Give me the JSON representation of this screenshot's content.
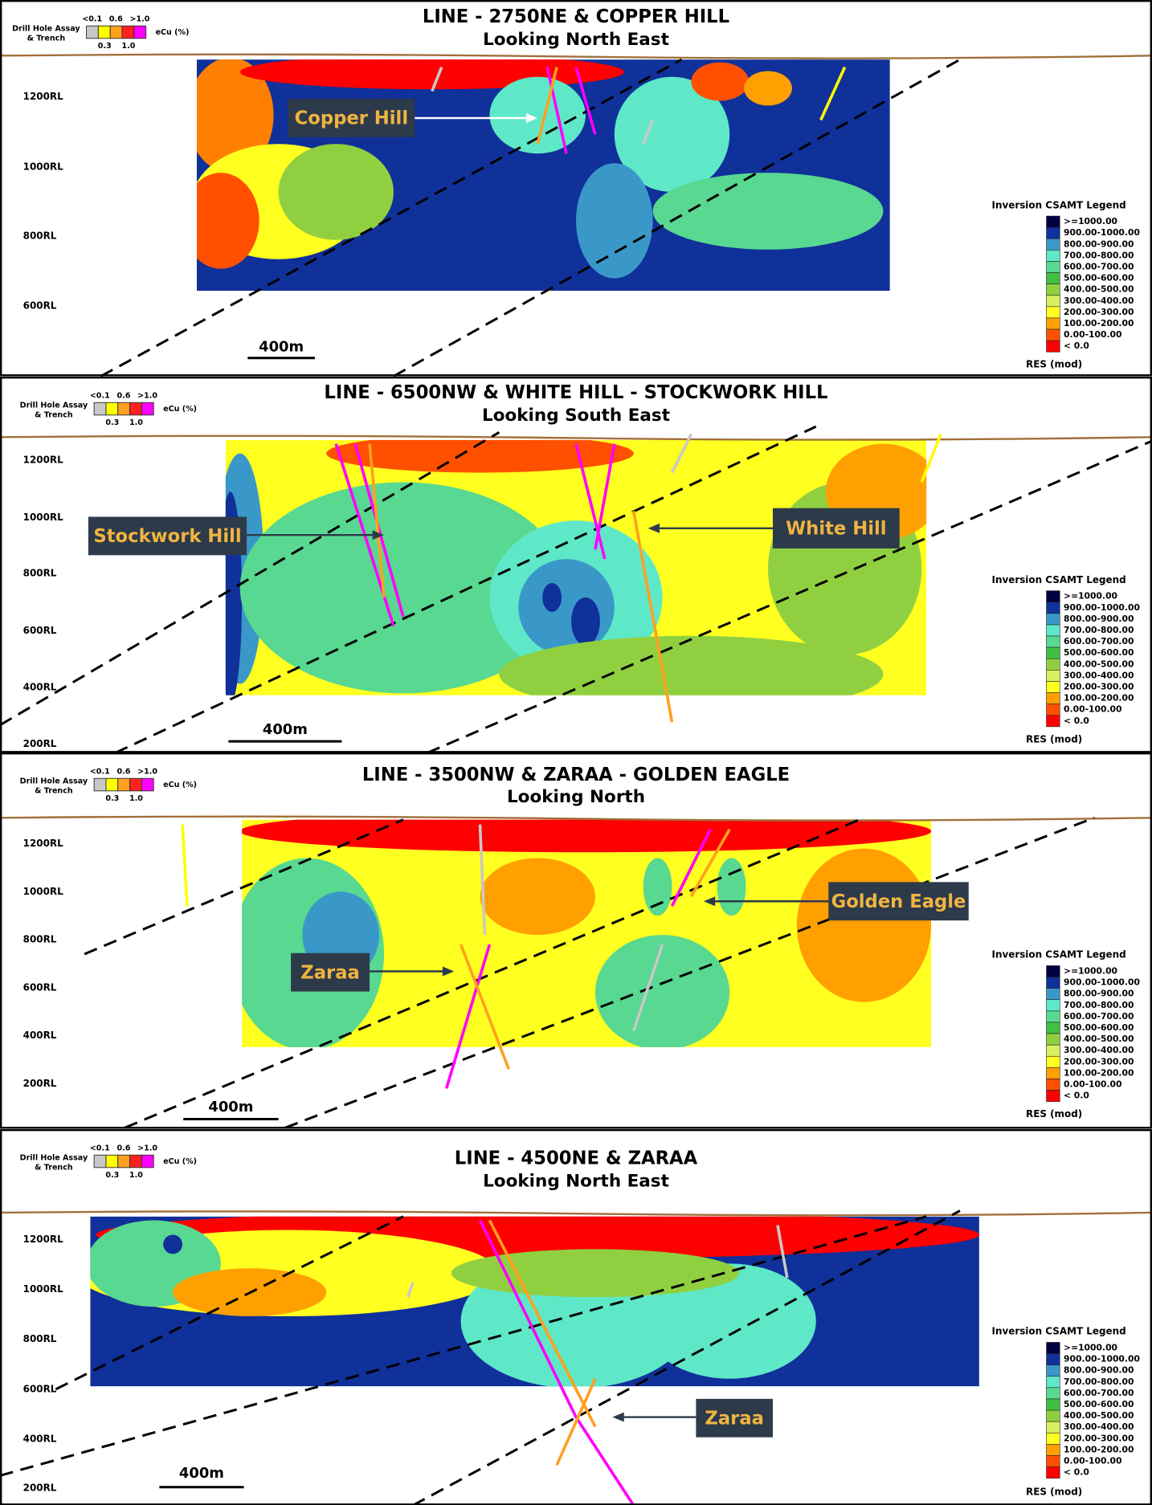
{
  "panels": [
    {
      "title": "LINE - 2750NE  & COPPER HILL",
      "subtitle": "Looking North East",
      "assay_legend": {
        "title": [
          "Drill Hole Assay",
          "& Trench"
        ],
        "top_labels": [
          "<0.1",
          "0.6",
          ">1.0"
        ],
        "bottom_labels": [
          "0.3",
          "1.0"
        ],
        "unit": "eCu (%)",
        "colors": [
          "#c8c8c8",
          "#ffff00",
          "#ffa020",
          "#ff2020",
          "#ff00ff"
        ]
      },
      "rl_labels": [
        "1200RL",
        "1000RL",
        "800RL",
        "600RL"
      ],
      "annotations": [
        "Copper Hill"
      ],
      "scale_bar": "400m",
      "csamt_legend": {
        "title": "Inversion CSAMT Legend",
        "entries": [
          {
            "label": ">=1000.00",
            "color": "#000040"
          },
          {
            "label": "900.00-1000.00",
            "color": "#10309a"
          },
          {
            "label": "800.00-900.00",
            "color": "#3a98c8"
          },
          {
            "label": "700.00-800.00",
            "color": "#5ee8c8"
          },
          {
            "label": "600.00-700.00",
            "color": "#58d890"
          },
          {
            "label": "500.00-600.00",
            "color": "#40c040"
          },
          {
            "label": "400.00-500.00",
            "color": "#90d040"
          },
          {
            "label": "300.00-400.00",
            "color": "#d8f060"
          },
          {
            "label": "200.00-300.00",
            "color": "#ffff20"
          },
          {
            "label": "100.00-200.00",
            "color": "#ffa000"
          },
          {
            "label": "0.00-100.00",
            "color": "#ff5000"
          },
          {
            "label": "< 0.0",
            "color": "#ff0000"
          }
        ],
        "footer": "RES (mod)"
      }
    },
    {
      "title": "LINE - 6500NW  & WHITE HILL - STOCKWORK HILL",
      "subtitle": "Looking South East",
      "assay_legend": {
        "title": [
          "Drill Hole Assay",
          "& Trench"
        ],
        "top_labels": [
          "<0.1",
          "0.6",
          ">1.0"
        ],
        "bottom_labels": [
          "0.3",
          "1.0"
        ],
        "unit": "eCu (%)",
        "colors": [
          "#c8c8c8",
          "#ffff00",
          "#ffa020",
          "#ff2020",
          "#ff00ff"
        ]
      },
      "rl_labels": [
        "1200RL",
        "1000RL",
        "800RL",
        "600RL",
        "400RL",
        "200RL"
      ],
      "annotations": [
        "Stockwork Hill",
        "White Hill"
      ],
      "scale_bar": "400m",
      "csamt_legend": {
        "title": "Inversion CSAMT Legend",
        "entries": [
          {
            "label": ">=1000.00",
            "color": "#000040"
          },
          {
            "label": "900.00-1000.00",
            "color": "#10309a"
          },
          {
            "label": "800.00-900.00",
            "color": "#3a98c8"
          },
          {
            "label": "700.00-800.00",
            "color": "#5ee8c8"
          },
          {
            "label": "600.00-700.00",
            "color": "#58d890"
          },
          {
            "label": "500.00-600.00",
            "color": "#40c040"
          },
          {
            "label": "400.00-500.00",
            "color": "#90d040"
          },
          {
            "label": "300.00-400.00",
            "color": "#d8f060"
          },
          {
            "label": "200.00-300.00",
            "color": "#ffff20"
          },
          {
            "label": "100.00-200.00",
            "color": "#ffa000"
          },
          {
            "label": "0.00-100.00",
            "color": "#ff5000"
          },
          {
            "label": "< 0.0",
            "color": "#ff0000"
          }
        ],
        "footer": "RES (mod)"
      }
    },
    {
      "title": "LINE - 3500NW  & ZARAA - GOLDEN EAGLE",
      "subtitle": "Looking North",
      "assay_legend": {
        "title": [
          "Drill Hole Assay",
          "& Trench"
        ],
        "top_labels": [
          "<0.1",
          "0.6",
          ">1.0"
        ],
        "bottom_labels": [
          "0.3",
          "1.0"
        ],
        "unit": "eCu (%)",
        "colors": [
          "#c8c8c8",
          "#ffff00",
          "#ffa020",
          "#ff2020",
          "#ff00ff"
        ]
      },
      "rl_labels": [
        "1200RL",
        "1000RL",
        "800RL",
        "600RL",
        "400RL",
        "200RL"
      ],
      "annotations": [
        "Zaraa",
        "Golden Eagle"
      ],
      "scale_bar": "400m",
      "csamt_legend": {
        "title": "Inversion CSAMT Legend",
        "entries": [
          {
            "label": ">=1000.00",
            "color": "#000040"
          },
          {
            "label": "900.00-1000.00",
            "color": "#10309a"
          },
          {
            "label": "800.00-900.00",
            "color": "#3a98c8"
          },
          {
            "label": "700.00-800.00",
            "color": "#5ee8c8"
          },
          {
            "label": "600.00-700.00",
            "color": "#58d890"
          },
          {
            "label": "500.00-600.00",
            "color": "#40c040"
          },
          {
            "label": "400.00-500.00",
            "color": "#90d040"
          },
          {
            "label": "300.00-400.00",
            "color": "#d8f060"
          },
          {
            "label": "200.00-300.00",
            "color": "#ffff20"
          },
          {
            "label": "100.00-200.00",
            "color": "#ffa000"
          },
          {
            "label": "0.00-100.00",
            "color": "#ff5000"
          },
          {
            "label": "< 0.0",
            "color": "#ff0000"
          }
        ],
        "footer": "RES (mod)"
      }
    },
    {
      "title": "LINE - 4500NE  & ZARAA",
      "subtitle": "Looking North East",
      "assay_legend": {
        "title": [
          "Drill Hole Assay",
          "& Trench"
        ],
        "top_labels": [
          "<0.1",
          "0.6",
          ">1.0"
        ],
        "bottom_labels": [
          "0.3",
          "1.0"
        ],
        "unit": "eCu (%)",
        "colors": [
          "#c8c8c8",
          "#ffff00",
          "#ffa020",
          "#ff2020",
          "#ff00ff"
        ]
      },
      "rl_labels": [
        "1200RL",
        "1000RL",
        "800RL",
        "600RL",
        "400RL",
        "200RL"
      ],
      "annotations": [
        "Zaraa"
      ],
      "scale_bar": "400m",
      "csamt_legend": {
        "title": "Inversion CSAMT Legend",
        "entries": [
          {
            "label": ">=1000.00",
            "color": "#000040"
          },
          {
            "label": "900.00-1000.00",
            "color": "#10309a"
          },
          {
            "label": "800.00-900.00",
            "color": "#3a98c8"
          },
          {
            "label": "700.00-800.00",
            "color": "#5ee8c8"
          },
          {
            "label": "600.00-700.00",
            "color": "#58d890"
          },
          {
            "label": "500.00-600.00",
            "color": "#40c040"
          },
          {
            "label": "400.00-500.00",
            "color": "#90d040"
          },
          {
            "label": "300.00-400.00",
            "color": "#d8f060"
          },
          {
            "label": "200.00-300.00",
            "color": "#ffff20"
          },
          {
            "label": "100.00-200.00",
            "color": "#ffa000"
          },
          {
            "label": "0.00-100.00",
            "color": "#ff5000"
          },
          {
            "label": "< 0.0",
            "color": "#ff0000"
          }
        ],
        "footer": "RES (mod)"
      }
    }
  ]
}
